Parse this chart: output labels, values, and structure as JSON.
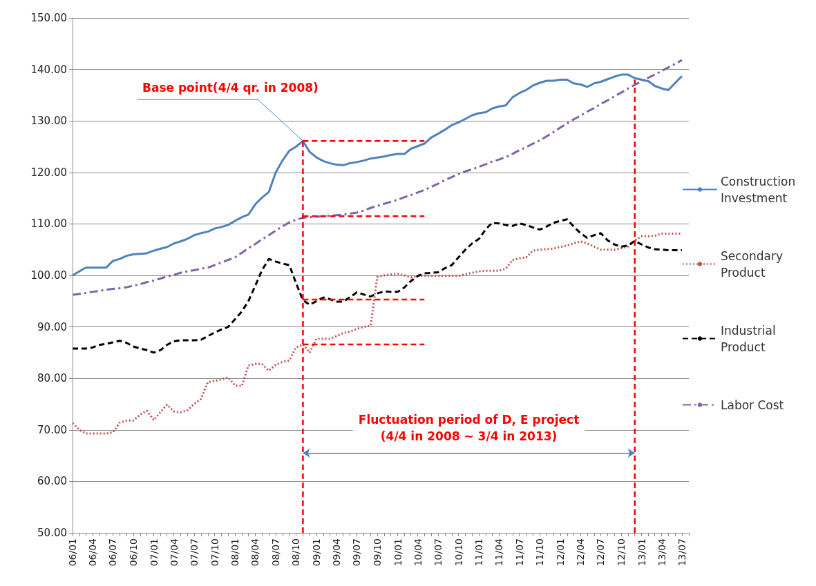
{
  "chart_data": {
    "type": "line",
    "x": [
      "2006-01",
      "2006-02",
      "2006-03",
      "2006-04",
      "2006-05",
      "2006-06",
      "2006-07",
      "2006-08",
      "2006-09",
      "2006-10",
      "2006-11",
      "2006-12",
      "2007-01",
      "2007-02",
      "2007-03",
      "2007-04",
      "2007-05",
      "2007-06",
      "2007-07",
      "2007-08",
      "2007-09",
      "2007-10",
      "2007-11",
      "2007-12",
      "2008-01",
      "2008-02",
      "2008-03",
      "2008-04",
      "2008-05",
      "2008-06",
      "2008-07",
      "2008-08",
      "2008-09",
      "2008-10",
      "2008-11",
      "2008-12",
      "2009-01",
      "2009-02",
      "2009-03",
      "2009-04",
      "2009-05",
      "2009-06",
      "2009-07",
      "2009-08",
      "2009-09",
      "2009-10",
      "2009-11",
      "2009-12",
      "2010-01",
      "2010-02",
      "2010-03",
      "2010-04",
      "2010-05",
      "2010-06",
      "2010-07",
      "2010-08",
      "2010-09",
      "2010-10",
      "2010-11",
      "2010-12",
      "2011-01",
      "2011-02",
      "2011-03",
      "2011-04",
      "2011-05",
      "2011-06",
      "2011-07",
      "2011-08",
      "2011-09",
      "2011-10",
      "2011-11",
      "2011-12",
      "2012-01",
      "2012-02",
      "2012-03",
      "2012-04",
      "2012-05",
      "2012-06",
      "2012-07",
      "2012-08",
      "2012-09",
      "2012-10",
      "2012-11",
      "2012-12",
      "2013-01",
      "2013-02",
      "2013-03",
      "2013-04",
      "2013-05",
      "2013-06",
      "2013-07"
    ],
    "series": [
      {
        "name": "Construction Investment",
        "color": "#4f81bd",
        "line_style": "solid",
        "values": [
          100.0,
          100.8,
          101.5,
          101.5,
          101.5,
          101.5,
          102.8,
          103.2,
          103.8,
          104.1,
          104.2,
          104.3,
          104.8,
          105.2,
          105.5,
          106.2,
          106.6,
          107.1,
          107.8,
          108.2,
          108.5,
          109.1,
          109.4,
          109.8,
          110.6,
          111.3,
          111.8,
          113.8,
          115.1,
          116.2,
          119.9,
          122.3,
          124.2,
          125.0,
          126.1,
          124.0,
          122.9,
          122.2,
          121.8,
          121.5,
          121.4,
          121.8,
          122.0,
          122.3,
          122.7,
          122.9,
          123.1,
          123.4,
          123.6,
          123.6,
          124.6,
          125.1,
          125.6,
          126.8,
          127.5,
          128.3,
          129.2,
          129.7,
          130.4,
          131.1,
          131.5,
          131.7,
          132.4,
          132.8,
          133.0,
          134.6,
          135.4,
          136.0,
          136.9,
          137.4,
          137.8,
          137.8,
          138.0,
          138.0,
          137.3,
          137.1,
          136.6,
          137.3,
          137.6,
          138.1,
          138.6,
          139.0,
          139.0,
          138.3,
          138.0,
          137.7,
          136.8,
          136.3,
          136.0,
          137.4,
          138.7
        ]
      },
      {
        "name": "Secondary Product",
        "color": "#c0504d",
        "line_style": "dotted",
        "values": [
          71.3,
          70.0,
          69.3,
          69.3,
          69.3,
          69.3,
          69.5,
          71.4,
          71.8,
          71.8,
          73.0,
          73.7,
          71.9,
          73.5,
          74.9,
          73.6,
          73.4,
          73.8,
          75.0,
          76.0,
          79.3,
          79.5,
          79.8,
          80.2,
          78.6,
          78.5,
          82.5,
          82.8,
          82.8,
          81.5,
          82.6,
          83.2,
          83.5,
          86.0,
          86.6,
          85.0,
          87.7,
          87.7,
          87.7,
          88.2,
          88.8,
          89.1,
          89.6,
          90.0,
          90.2,
          99.7,
          100.0,
          100.2,
          100.3,
          100.0,
          99.6,
          99.9,
          99.9,
          99.9,
          99.9,
          99.9,
          99.9,
          99.9,
          100.2,
          100.5,
          100.8,
          100.9,
          100.9,
          100.9,
          101.3,
          103.0,
          103.3,
          103.5,
          104.8,
          105.0,
          105.1,
          105.2,
          105.5,
          105.8,
          106.2,
          106.6,
          106.2,
          105.6,
          105.0,
          105.0,
          105.0,
          105.3,
          105.6,
          106.8,
          107.6,
          107.6,
          107.7,
          108.1,
          108.1,
          108.1,
          108.1
        ]
      },
      {
        "name": "Industrial Product",
        "color": "#000000",
        "line_style": "dashed",
        "values": [
          85.8,
          85.8,
          85.8,
          86.0,
          86.5,
          86.7,
          87.0,
          87.3,
          86.9,
          86.2,
          85.8,
          85.5,
          85.0,
          85.5,
          86.5,
          87.2,
          87.4,
          87.4,
          87.4,
          87.5,
          88.2,
          88.9,
          89.5,
          90.0,
          91.5,
          93.0,
          95.0,
          98.0,
          101.0,
          103.2,
          102.7,
          102.3,
          102.0,
          98.5,
          95.2,
          94.3,
          95.0,
          95.7,
          95.4,
          94.9,
          94.9,
          95.8,
          96.7,
          96.3,
          95.9,
          96.5,
          96.9,
          96.8,
          96.8,
          97.7,
          98.9,
          99.9,
          100.4,
          100.5,
          100.6,
          101.4,
          102.0,
          103.5,
          105.0,
          106.2,
          107.1,
          109.0,
          110.2,
          110.1,
          109.8,
          109.6,
          110.1,
          109.8,
          109.3,
          108.9,
          109.5,
          110.2,
          110.6,
          110.9,
          109.5,
          108.2,
          107.3,
          107.8,
          108.2,
          106.8,
          106.0,
          105.6,
          105.8,
          106.7,
          106.0,
          105.4,
          105.1,
          105.0,
          104.9,
          104.9,
          104.9
        ]
      },
      {
        "name": "Labor Cost",
        "color": "#8064a2",
        "line_style": "dashdot",
        "values": [
          96.2,
          96.4,
          96.6,
          96.8,
          97.0,
          97.2,
          97.4,
          97.5,
          97.7,
          98.0,
          98.3,
          98.7,
          99.0,
          99.4,
          99.8,
          100.1,
          100.5,
          100.8,
          101.0,
          101.3,
          101.5,
          102.0,
          102.5,
          103.0,
          103.5,
          104.4,
          105.3,
          106.1,
          107.0,
          107.8,
          108.7,
          109.5,
          110.3,
          110.8,
          111.2,
          111.3,
          111.4,
          111.5,
          111.6,
          111.7,
          111.8,
          112.0,
          112.2,
          112.6,
          113.1,
          113.5,
          113.9,
          114.3,
          114.7,
          115.2,
          115.6,
          116.1,
          116.6,
          117.2,
          117.8,
          118.5,
          119.1,
          119.7,
          120.2,
          120.6,
          121.1,
          121.6,
          122.1,
          122.5,
          123.0,
          123.6,
          124.3,
          124.9,
          125.6,
          126.2,
          127.0,
          127.8,
          128.7,
          129.5,
          130.3,
          131.0,
          131.8,
          132.5,
          133.3,
          134.0,
          134.8,
          135.5,
          136.3,
          137.0,
          137.7,
          138.4,
          139.0,
          139.7,
          140.4,
          141.1,
          141.8
        ]
      },
      {
        "color": "#ff0000",
        "line_style": "dashed",
        "x": [
          "2008-11",
          "2008-11"
        ],
        "values": [
          50,
          126.1
        ]
      },
      {
        "color": "#ff0000",
        "line_style": "dashed",
        "x": [
          "2012-12",
          "2012-12"
        ],
        "values": [
          50,
          138.0
        ]
      },
      {
        "color": "#ff0000",
        "line_style": "dashed",
        "x": [
          "2008-11",
          "2010-05"
        ],
        "values": [
          126.1,
          126.1
        ]
      },
      {
        "color": "#ff0000",
        "line_style": "dashed",
        "x": [
          "2008-11",
          "2010-05"
        ],
        "values": [
          111.5,
          111.5
        ]
      },
      {
        "color": "#ff0000",
        "line_style": "dashed",
        "x": [
          "2008-11",
          "2010-05"
        ],
        "values": [
          95.3,
          95.3
        ]
      },
      {
        "color": "#ff0000",
        "line_style": "dashed",
        "x": [
          "2008-11",
          "2010-05"
        ],
        "values": [
          86.6,
          86.6
        ]
      }
    ],
    "annotations": [
      {
        "text": "Base point(4/4 qr. in 2008)",
        "x": "2008-11",
        "y": 126.1
      },
      "Fluctuation period of D, E project\n(4/4 in 2008 ~ 3/4 in 2013)"
    ],
    "ylim": [
      50,
      150
    ],
    "yticks": [
      {
        "value": 50,
        "label": "50.00"
      },
      {
        "value": 60,
        "label": "60.00"
      },
      {
        "value": 70,
        "label": "70.00"
      },
      {
        "value": 80,
        "label": "80.00"
      },
      {
        "value": 90,
        "label": "90.00"
      },
      {
        "value": 100,
        "label": "100.00"
      },
      {
        "value": 110,
        "label": "110.00"
      },
      {
        "value": 120,
        "label": "120.00"
      },
      {
        "value": 130,
        "label": "130.00"
      },
      {
        "value": 140,
        "label": "140.00"
      },
      {
        "value": 150,
        "label": "150.00"
      }
    ],
    "xlim": [
      "2006-01",
      "2013-08"
    ],
    "xticks": [
      {
        "value": "2006-01",
        "label": "06/01"
      },
      {
        "value": "2006-02",
        "label": null
      },
      {
        "value": "2006-03",
        "label": null
      },
      {
        "value": "2006-04",
        "label": "06/04"
      },
      {
        "value": "2006-05",
        "label": null
      },
      {
        "value": "2006-06",
        "label": null
      },
      {
        "value": "2006-07",
        "label": "06/07"
      },
      {
        "value": "2006-08",
        "label": null
      },
      {
        "value": "2006-09",
        "label": null
      },
      {
        "value": "2006-10",
        "label": "06/10"
      },
      {
        "value": "2006-11",
        "label": null
      },
      {
        "value": "2006-12",
        "label": null
      },
      {
        "value": "2007-01",
        "label": "07/01"
      },
      {
        "value": "2007-02",
        "label": null
      },
      {
        "value": "2007-03",
        "label": null
      },
      {
        "value": "2007-04",
        "label": "07/04"
      },
      {
        "value": "2007-05",
        "label": null
      },
      {
        "value": "2007-06",
        "label": null
      },
      {
        "value": "2007-07",
        "label": "07/07"
      },
      {
        "value": "2007-08",
        "label": null
      },
      {
        "value": "2007-09",
        "label": null
      },
      {
        "value": "2007-10",
        "label": "07/10"
      },
      {
        "value": "2007-11",
        "label": null
      },
      {
        "value": "2007-12",
        "label": null
      },
      {
        "value": "2008-01",
        "label": "08/01"
      },
      {
        "value": "2008-02",
        "label": null
      },
      {
        "value": "2008-03",
        "label": null
      },
      {
        "value": "2008-04",
        "label": "08/04"
      },
      {
        "value": "2008-05",
        "label": null
      },
      {
        "value": "2008-06",
        "label": null
      },
      {
        "value": "2008-07",
        "label": "08/07"
      },
      {
        "value": "2008-08",
        "label": null
      },
      {
        "value": "2008-09",
        "label": null
      },
      {
        "value": "2008-10",
        "label": "08/10"
      },
      {
        "value": "2008-11",
        "label": null
      },
      {
        "value": "2008-12",
        "label": null
      },
      {
        "value": "2009-01",
        "label": "09/01"
      },
      {
        "value": "2009-02",
        "label": null
      },
      {
        "value": "2009-03",
        "label": null
      },
      {
        "value": "2009-04",
        "label": "09/04"
      },
      {
        "value": "2009-05",
        "label": null
      },
      {
        "value": "2009-06",
        "label": null
      },
      {
        "value": "2009-07",
        "label": "09/07"
      },
      {
        "value": "2009-08",
        "label": null
      },
      {
        "value": "2009-09",
        "label": null
      },
      {
        "value": "2009-10",
        "label": "09/10"
      },
      {
        "value": "2009-11",
        "label": null
      },
      {
        "value": "2009-12",
        "label": null
      },
      {
        "value": "2010-01",
        "label": "10/01"
      },
      {
        "value": "2010-02",
        "label": null
      },
      {
        "value": "2010-03",
        "label": null
      },
      {
        "value": "2010-04",
        "label": "10/04"
      },
      {
        "value": "2010-05",
        "label": null
      },
      {
        "value": "2010-06",
        "label": null
      },
      {
        "value": "2010-07",
        "label": "10/07"
      },
      {
        "value": "2010-08",
        "label": null
      },
      {
        "value": "2010-09",
        "label": null
      },
      {
        "value": "2010-10",
        "label": "10/10"
      },
      {
        "value": "2010-11",
        "label": null
      },
      {
        "value": "2010-12",
        "label": null
      },
      {
        "value": "2011-01",
        "label": "11/01"
      },
      {
        "value": "2011-02",
        "label": null
      },
      {
        "value": "2011-03",
        "label": null
      },
      {
        "value": "2011-04",
        "label": "11/04"
      },
      {
        "value": "2011-05",
        "label": null
      },
      {
        "value": "2011-06",
        "label": null
      },
      {
        "value": "2011-07",
        "label": "11/07"
      },
      {
        "value": "2011-08",
        "label": null
      },
      {
        "value": "2011-09",
        "label": null
      },
      {
        "value": "2011-10",
        "label": "11/10"
      },
      {
        "value": "2011-11",
        "label": null
      },
      {
        "value": "2011-12",
        "label": null
      },
      {
        "value": "2012-01",
        "label": "12/01"
      },
      {
        "value": "2012-02",
        "label": null
      },
      {
        "value": "2012-03",
        "label": null
      },
      {
        "value": "2012-04",
        "label": "12/04"
      },
      {
        "value": "2012-05",
        "label": null
      },
      {
        "value": "2012-06",
        "label": null
      },
      {
        "value": "2012-07",
        "label": "12/07"
      },
      {
        "value": "2012-08",
        "label": null
      },
      {
        "value": "2012-09",
        "label": null
      },
      {
        "value": "2012-10",
        "label": "12/10"
      },
      {
        "value": "2012-11",
        "label": null
      },
      {
        "value": "2012-12",
        "label": null
      },
      {
        "value": "2013-01",
        "label": "13/01"
      },
      {
        "value": "2013-02",
        "label": null
      },
      {
        "value": "2013-03",
        "label": null
      },
      {
        "value": "2013-04",
        "label": "13/04"
      },
      {
        "value": "2013-05",
        "label": null
      },
      {
        "value": "2013-06",
        "label": null
      },
      {
        "value": "2013-07",
        "label": "13/07"
      },
      {
        "value": "2013-08",
        "label": null
      }
    ],
    "grid": "y",
    "legend": "right",
    "marker": "none"
  }
}
